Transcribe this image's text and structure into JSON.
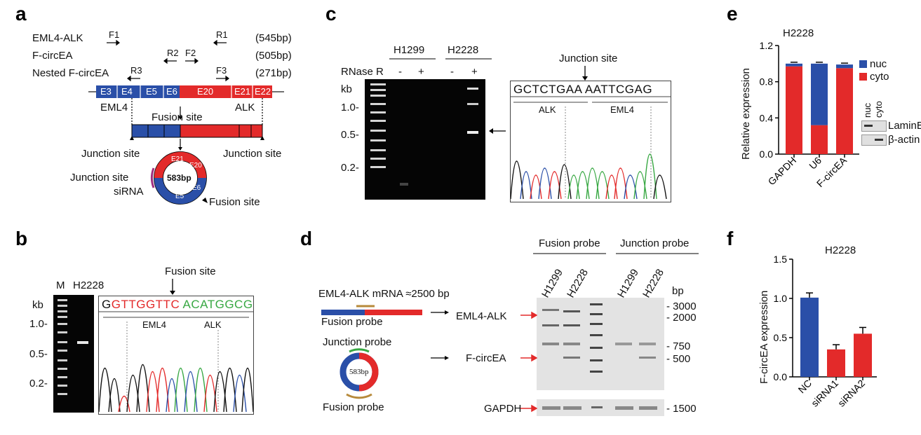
{
  "colors": {
    "blue": "#2a4fa8",
    "red": "#e32a2a",
    "brown": "#b78a3b",
    "green": "#38a843",
    "purple": "#a03080",
    "black": "#000000"
  },
  "panel_a": {
    "label": "a",
    "rows": [
      {
        "name": "EML4-ALK",
        "size": "(545bp)"
      },
      {
        "name": "F-circEA",
        "size": "(505bp)"
      },
      {
        "name": "Nested F-circEA",
        "size": "(271bp)"
      }
    ],
    "primers": [
      "F1",
      "R1",
      "R2",
      "F2",
      "R3",
      "F3"
    ],
    "exons_blue": [
      "E3",
      "E4",
      "E5",
      "E6"
    ],
    "exons_red": [
      "E20",
      "E21",
      "E22"
    ],
    "gene_left": "EML4",
    "gene_right": "ALK",
    "fusion_site": "Fusion site",
    "junction_site": "Junction site",
    "circle_size": "583bp",
    "circle_exons": [
      "E21",
      "E20",
      "E5",
      "E6"
    ],
    "sirna": "siRNA"
  },
  "panel_b": {
    "label": "b",
    "lanes": [
      "M",
      "H2228"
    ],
    "kb": "kb",
    "ticks": [
      "1.0-",
      "0.5-",
      "0.2-"
    ],
    "fusion_site": "Fusion site",
    "sequence_red": "GTTGGTTC",
    "sequence_green": "ACATGGCG",
    "gene_left": "EML4",
    "gene_right": "ALK"
  },
  "panel_c": {
    "label": "c",
    "cells": [
      "H1299",
      "H2228"
    ],
    "rnase": "RNase R",
    "signs": [
      "-",
      "+",
      "-",
      "+"
    ],
    "kb": "kb",
    "ticks": [
      "1.0-",
      "0.5-",
      "0.2-"
    ],
    "junction_site": "Junction site",
    "sequence_left": "GCTCTGAA",
    "sequence_right": "AATTCGAG",
    "gene_left": "ALK",
    "gene_right": "EML4"
  },
  "panel_d": {
    "label": "d",
    "mrna_label": "EML4-ALK mRNA ≈2500 bp",
    "fusion_probe": "Fusion probe",
    "junction_probe": "Junction probe",
    "circle_size": "583bp",
    "lanes": [
      "H1299",
      "H2228",
      "H1299",
      "H2228"
    ],
    "header_fusion": "Fusion probe",
    "header_junction": "Junction probe",
    "bp": "bp",
    "markers": [
      "- 3000",
      "- 2000",
      "- 750",
      "- 500",
      "- 1500"
    ],
    "band_labels": [
      "EML4-ALK",
      "F-circEA",
      "GAPDH"
    ]
  },
  "panel_e": {
    "label": "e",
    "chart_data": {
      "type": "bar",
      "title": "H2228",
      "ylabel": "Relative expression",
      "categories": [
        "GAPDH",
        "U6",
        "F-circEA"
      ],
      "series": [
        {
          "name": "cyto",
          "values": [
            0.97,
            0.32,
            0.95
          ]
        },
        {
          "name": "nuc",
          "values": [
            0.03,
            0.68,
            0.04
          ]
        }
      ],
      "ylim": [
        0,
        1.2
      ],
      "yticks": [
        "0.0",
        "0.4",
        "0.8",
        "1.2"
      ],
      "legend": "top-right"
    },
    "blot_headers": [
      "nuc",
      "cyto"
    ],
    "blot_labels": [
      "LaminB1",
      "β-actin"
    ]
  },
  "panel_f": {
    "label": "f",
    "chart_data": {
      "type": "bar",
      "title": "H2228",
      "ylabel": "F-circEA expression",
      "categories": [
        "NC",
        "siRNA1",
        "siRNA2"
      ],
      "values": [
        1.01,
        0.35,
        0.55
      ],
      "errors": [
        0.06,
        0.06,
        0.08
      ],
      "ylim": [
        0,
        1.5
      ],
      "yticks": [
        "0.0",
        "0.5",
        "1.0",
        "1.5"
      ]
    }
  }
}
